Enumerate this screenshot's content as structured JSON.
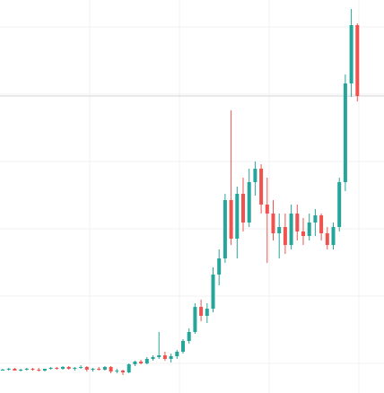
{
  "chart_data": {
    "type": "candlestick",
    "open": [
      26,
      26,
      27,
      25,
      26,
      27,
      26,
      25,
      27,
      28,
      27,
      29,
      27,
      28,
      29,
      26,
      27,
      26,
      29,
      24,
      25,
      23,
      32,
      35,
      33,
      38,
      40,
      42,
      38,
      41,
      46,
      58,
      68,
      96,
      86,
      94,
      132,
      150,
      215,
      172,
      222,
      190,
      235,
      250,
      210,
      200,
      178,
      185,
      165,
      200,
      180,
      175,
      190,
      198,
      178,
      165,
      185,
      235,
      345,
      410
    ],
    "high": [
      27,
      28,
      28,
      27,
      28,
      28,
      28,
      27,
      29,
      29,
      30,
      30,
      29,
      31,
      30,
      28,
      29,
      30,
      30,
      27,
      26,
      33,
      36,
      37,
      40,
      42,
      68,
      46,
      44,
      48,
      60,
      72,
      100,
      104,
      100,
      140,
      160,
      222,
      315,
      230,
      240,
      250,
      258,
      255,
      240,
      215,
      200,
      200,
      210,
      210,
      195,
      200,
      205,
      200,
      185,
      190,
      240,
      355,
      428,
      412
    ],
    "low": [
      25,
      25,
      25,
      24,
      25,
      25,
      24,
      24,
      26,
      26,
      26,
      26,
      25,
      27,
      24,
      24,
      25,
      25,
      22,
      22,
      20,
      22,
      30,
      32,
      32,
      36,
      38,
      36,
      34,
      38,
      44,
      55,
      66,
      80,
      78,
      90,
      120,
      145,
      165,
      150,
      180,
      185,
      220,
      200,
      145,
      170,
      150,
      155,
      160,
      170,
      165,
      170,
      175,
      170,
      160,
      160,
      180,
      225,
      330,
      325
    ],
    "close": [
      26,
      27,
      25,
      26,
      27,
      26,
      25,
      27,
      28,
      27,
      29,
      27,
      28,
      29,
      26,
      27,
      26,
      29,
      24,
      25,
      23,
      32,
      35,
      33,
      38,
      40,
      42,
      38,
      41,
      46,
      58,
      68,
      96,
      86,
      94,
      132,
      150,
      215,
      172,
      222,
      190,
      235,
      250,
      210,
      200,
      178,
      185,
      165,
      200,
      180,
      175,
      190,
      198,
      178,
      165,
      185,
      235,
      345,
      410,
      331
    ],
    "up_color": "#26a69a",
    "down_color": "#ef5350",
    "last_price": 331,
    "ylim": [
      0,
      438
    ],
    "yticks": [
      33,
      108,
      183,
      258,
      333,
      408
    ],
    "grid": true
  }
}
